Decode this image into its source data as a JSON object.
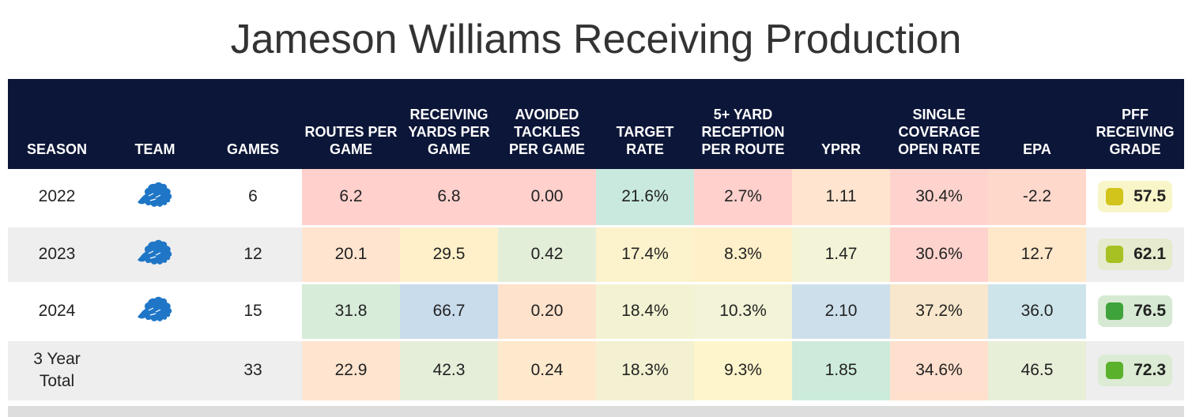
{
  "title": "Jameson Williams Receiving Production",
  "chart_data": {
    "type": "table",
    "title": "Jameson Williams Receiving Production",
    "columns": [
      "SEASON",
      "TEAM",
      "GAMES",
      "ROUTES PER GAME",
      "RECEIVING YARDS PER GAME",
      "AVOIDED TACKLES PER GAME",
      "TARGET RATE",
      "5+ YARD RECEPTION PER ROUTE",
      "YPRR",
      "SINGLE COVERAGE OPEN RATE",
      "EPA",
      "PFF RECEIVING GRADE"
    ],
    "rows": [
      {
        "season": "2022",
        "team_icon": "detroit-lions-logo",
        "games": "6",
        "routes_per_game": "6.2",
        "receiving_yards_per_game": "6.8",
        "avoided_tackles_per_game": "0.00",
        "target_rate": "21.6%",
        "five_plus_yard_reception_per_route": "2.7%",
        "yprr": "1.11",
        "single_coverage_open_rate": "30.4%",
        "epa": "-2.2",
        "pff_receiving_grade": "57.5"
      },
      {
        "season": "2023",
        "team_icon": "detroit-lions-logo",
        "games": "12",
        "routes_per_game": "20.1",
        "receiving_yards_per_game": "29.5",
        "avoided_tackles_per_game": "0.42",
        "target_rate": "17.4%",
        "five_plus_yard_reception_per_route": "8.3%",
        "yprr": "1.47",
        "single_coverage_open_rate": "30.6%",
        "epa": "12.7",
        "pff_receiving_grade": "62.1"
      },
      {
        "season": "2024",
        "team_icon": "detroit-lions-logo",
        "games": "15",
        "routes_per_game": "31.8",
        "receiving_yards_per_game": "66.7",
        "avoided_tackles_per_game": "0.20",
        "target_rate": "18.4%",
        "five_plus_yard_reception_per_route": "10.3%",
        "yprr": "2.10",
        "single_coverage_open_rate": "37.2%",
        "epa": "36.0",
        "pff_receiving_grade": "76.5"
      },
      {
        "season": "3 Year Total",
        "team_icon": "",
        "games": "33",
        "routes_per_game": "22.9",
        "receiving_yards_per_game": "42.3",
        "avoided_tackles_per_game": "0.24",
        "target_rate": "18.3%",
        "five_plus_yard_reception_per_route": "9.3%",
        "yprr": "1.85",
        "single_coverage_open_rate": "34.6%",
        "epa": "46.5",
        "pff_receiving_grade": "72.3"
      }
    ]
  },
  "header": {
    "season": "SEASON",
    "team": "TEAM",
    "games": "GAMES",
    "routes_per_game": "ROUTES PER GAME",
    "receiving_yards_per_game": "RECEIVING YARDS PER GAME",
    "avoided_tackles_per_game": "AVOIDED TACKLES PER GAME",
    "target_rate": "TARGET RATE",
    "five_plus_yard": "5+ YARD RECEPTION PER ROUTE",
    "yprr": "YPRR",
    "single_coverage_open_rate": "SINGLE COVERAGE OPEN RATE",
    "epa": "EPA",
    "pff_receiving_grade": "PFF RECEIVING GRADE"
  },
  "cell_colors": [
    [
      "#ffd0cc",
      "#ffd0cc",
      "#ffd0cc",
      "#c9e9df",
      "#ffd0cc",
      "#ffe5cf",
      "#ffd3cd",
      "#ffd8cc"
    ],
    [
      "#ffe4cf",
      "#fff0c9",
      "#e3eed9",
      "#fcf3cd",
      "#fff0c9",
      "#f3f3d7",
      "#ffd3cd",
      "#ffe8c9"
    ],
    [
      "#d7ecd9",
      "#c9dcec",
      "#ffe2cc",
      "#f3f3d3",
      "#f3f3d7",
      "#cddfeb",
      "#f8e7cc",
      "#cde4ea"
    ],
    [
      "#ffe4cf",
      "#e5eed9",
      "#ffe9cc",
      "#f3f1d1",
      "#fff5cc",
      "#cdebdb",
      "#ffdfcd",
      "#e8efd9"
    ]
  ],
  "grade_colors": [
    {
      "box": "#f8f5c8",
      "dot": "#d2c41a"
    },
    {
      "box": "#e5ebcc",
      "dot": "#a7c122"
    },
    {
      "box": "#d6ead3",
      "dot": "#3da33a"
    },
    {
      "box": "#dcebd3",
      "dot": "#5ab22c"
    }
  ],
  "colors": {
    "header_bg": "#0c1638",
    "title_text": "#333333",
    "lion_blue": "#1f76c6"
  }
}
